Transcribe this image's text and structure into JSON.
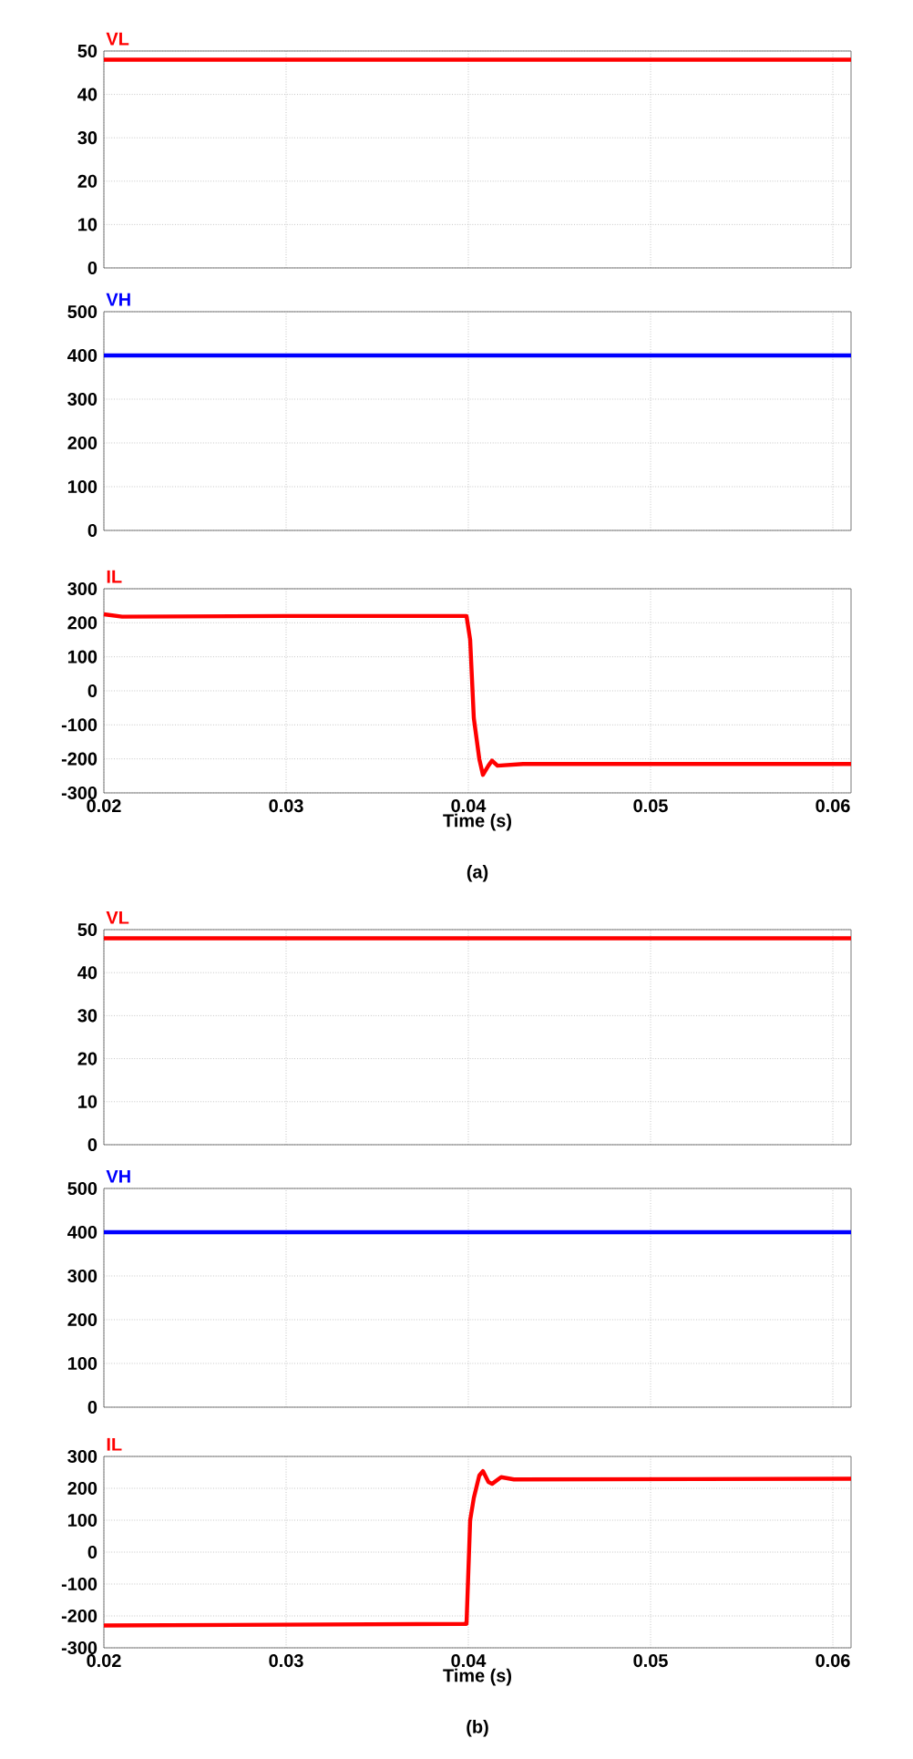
{
  "chart_data": [
    {
      "type": "line",
      "series": [
        {
          "name": "VL",
          "color": "#ff0000",
          "x": [
            0.02,
            0.061
          ],
          "values": [
            48,
            48
          ]
        }
      ],
      "xlim": [
        0.02,
        0.061
      ],
      "xticks": [
        0.02,
        0.03,
        0.04,
        0.05,
        0.06
      ],
      "ylim": [
        0,
        50
      ],
      "yticks": [
        0,
        10,
        20,
        30,
        40,
        50
      ],
      "grid": true,
      "tick_labels": "y"
    },
    {
      "type": "line",
      "series": [
        {
          "name": "VH",
          "color": "#0000ff",
          "x": [
            0.02,
            0.061
          ],
          "values": [
            400,
            400
          ]
        }
      ],
      "xlim": [
        0.02,
        0.061
      ],
      "xticks": [
        0.02,
        0.03,
        0.04,
        0.05,
        0.06
      ],
      "ylim": [
        0,
        500
      ],
      "yticks": [
        0,
        100,
        200,
        300,
        400,
        500
      ],
      "grid": true,
      "tick_labels": "y"
    },
    {
      "type": "line",
      "series": [
        {
          "name": "IL",
          "color": "#ff0000",
          "x": [
            0.02,
            0.021,
            0.03,
            0.0399,
            0.0401,
            0.0403,
            0.0406,
            0.0408,
            0.0411,
            0.0413,
            0.0416,
            0.043,
            0.061
          ],
          "values": [
            225,
            218,
            220,
            220,
            150,
            -80,
            -200,
            -247,
            -220,
            -205,
            -220,
            -215,
            -215
          ]
        }
      ],
      "xlim": [
        0.02,
        0.061
      ],
      "xticks": [
        0.02,
        0.03,
        0.04,
        0.05,
        0.06
      ],
      "ylim": [
        -300,
        300
      ],
      "yticks": [
        -300,
        -200,
        -100,
        0,
        100,
        200,
        300
      ],
      "grid": true,
      "xlabel": "Time (s)",
      "annotations": [
        "(a)"
      ]
    },
    {
      "type": "line",
      "series": [
        {
          "name": "VL",
          "color": "#ff0000",
          "x": [
            0.02,
            0.061
          ],
          "values": [
            48,
            48
          ]
        }
      ],
      "xlim": [
        0.02,
        0.061
      ],
      "xticks": [
        0.02,
        0.03,
        0.04,
        0.05,
        0.06
      ],
      "ylim": [
        0,
        50
      ],
      "yticks": [
        0,
        10,
        20,
        30,
        40,
        50
      ],
      "grid": true,
      "tick_labels": "y"
    },
    {
      "type": "line",
      "series": [
        {
          "name": "VH",
          "color": "#0000ff",
          "x": [
            0.02,
            0.061
          ],
          "values": [
            400,
            400
          ]
        }
      ],
      "xlim": [
        0.02,
        0.061
      ],
      "xticks": [
        0.02,
        0.03,
        0.04,
        0.05,
        0.06
      ],
      "ylim": [
        0,
        500
      ],
      "yticks": [
        0,
        100,
        200,
        300,
        400,
        500
      ],
      "grid": true,
      "tick_labels": "y"
    },
    {
      "type": "line",
      "series": [
        {
          "name": "IL",
          "color": "#ff0000",
          "x": [
            0.02,
            0.0399,
            0.0401,
            0.0403,
            0.0406,
            0.0408,
            0.0411,
            0.0413,
            0.0418,
            0.0425,
            0.061
          ],
          "values": [
            -230,
            -225,
            100,
            170,
            240,
            254,
            220,
            214,
            235,
            228,
            230
          ]
        }
      ],
      "xlim": [
        0.02,
        0.061
      ],
      "xticks": [
        0.02,
        0.03,
        0.04,
        0.05,
        0.06
      ],
      "ylim": [
        -300,
        300
      ],
      "yticks": [
        -300,
        -200,
        -100,
        0,
        100,
        200,
        300
      ],
      "grid": true,
      "xlabel": "Time (s)",
      "annotations": [
        "(b)"
      ]
    }
  ]
}
